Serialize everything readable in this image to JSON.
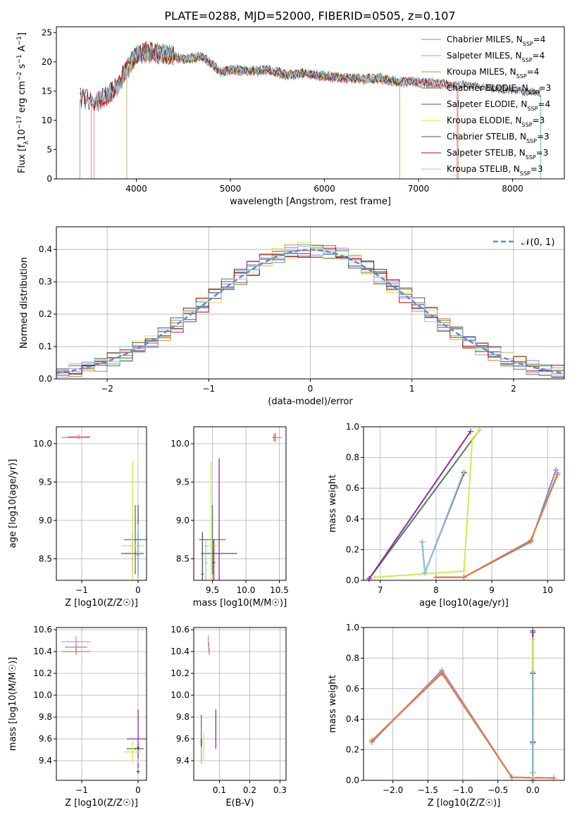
{
  "figure_title": "PLATE=0288, MJD=52000, FIBERID=0505, z=0.107",
  "colors": {
    "Chabrier MILES": "#6b8fd6",
    "Salpeter MILES": "#e886a8",
    "Kroupa MILES": "#e07b39",
    "Chabrier ELODIE": "#4f7f5a",
    "Salpeter ELODIE": "#8e2a9e",
    "Kroupa ELODIE": "#d6e84a",
    "Chabrier STELIB": "#555555",
    "Salpeter STELIB": "#a01010",
    "Kroupa STELIB": "#84d0e0",
    "normal_curve": "#5b8bd4"
  },
  "chart_data": [
    {
      "type": "line",
      "xlabel": "wavelength [Angstrom, rest frame]",
      "ylabel": "Flux [f_λ 10^-17 erg cm^-2 s^-1 A^-1]",
      "xlim": [
        3150,
        8550
      ],
      "ylim": [
        0,
        26
      ],
      "xticks": [
        "4000",
        "5000",
        "6000",
        "7000",
        "8000"
      ],
      "yticks": [
        "0",
        "5",
        "10",
        "15",
        "20",
        "25"
      ],
      "grid": false,
      "legend_position": "top-right",
      "legend": [
        {
          "label": "Chabrier MILES",
          "nssp": "4"
        },
        {
          "label": "Salpeter MILES",
          "nssp": "4"
        },
        {
          "label": "Kroupa MILES",
          "nssp": "4"
        },
        {
          "label": "Chabrier ELODIE",
          "nssp": "3"
        },
        {
          "label": "Salpeter ELODIE",
          "nssp": "4"
        },
        {
          "label": "Kroupa ELODIE",
          "nssp": "3"
        },
        {
          "label": "Chabrier STELIB",
          "nssp": "3"
        },
        {
          "label": "Salpeter STELIB",
          "nssp": "3"
        },
        {
          "label": "Kroupa STELIB",
          "nssp": "3"
        }
      ],
      "spectrum_anchors": {
        "x": [
          3400,
          3550,
          3700,
          3800,
          3900,
          4000,
          4100,
          4300,
          4500,
          4700,
          4800,
          4900,
          5000,
          5200,
          5400,
          5600,
          5800,
          6000,
          6200,
          6400,
          6600,
          6800,
          7000,
          7200,
          7400,
          7600,
          7800,
          8000,
          8200,
          8300
        ],
        "y": [
          13.6,
          12.8,
          14.0,
          15.8,
          18.5,
          21.0,
          21.5,
          21.0,
          20.2,
          20.6,
          19.5,
          18.0,
          18.4,
          18.2,
          18.4,
          17.5,
          17.8,
          17.3,
          17.0,
          16.8,
          16.9,
          16.3,
          16.3,
          16.0,
          15.7,
          15.5,
          15.1,
          14.8,
          14.5,
          14.3
        ]
      },
      "series_ranges": [
        {
          "name": "Chabrier MILES",
          "x": [
            3550,
            7410
          ]
        },
        {
          "name": "Salpeter MILES",
          "x": [
            3550,
            7410
          ]
        },
        {
          "name": "Kroupa MILES",
          "x": [
            3520,
            7420
          ]
        },
        {
          "name": "Chabrier ELODIE",
          "x": [
            3900,
            6800
          ]
        },
        {
          "name": "Salpeter ELODIE",
          "x": [
            3900,
            6800
          ]
        },
        {
          "name": "Kroupa ELODIE",
          "x": [
            3900,
            6800
          ]
        },
        {
          "name": "Chabrier STELIB",
          "x": [
            3400,
            8300
          ]
        },
        {
          "name": "Salpeter STELIB",
          "x": [
            3400,
            8300
          ]
        },
        {
          "name": "Kroupa STELIB",
          "x": [
            3400,
            8300
          ]
        }
      ]
    },
    {
      "type": "line",
      "xlabel": "(data-model)/error",
      "ylabel": "Normed distribution",
      "xlim": [
        -2.5,
        2.5
      ],
      "ylim": [
        0,
        0.47
      ],
      "xticks": [
        "−2",
        "−1",
        "0",
        "1",
        "2"
      ],
      "yticks": [
        "0.0",
        "0.1",
        "0.2",
        "0.3",
        "0.4"
      ],
      "grid": true,
      "legend_position": "top-right",
      "legend_label": "𝒩(0, 1)",
      "bin_width": 0.125,
      "curve": {
        "name": "𝒩(0, 1)",
        "mean": 0,
        "sigma": 1
      }
    },
    {
      "type": "scatter",
      "xlabel": "Z [log10(Z/Z☉)]",
      "ylabel": "age  [log10(age/yr)]",
      "xlim": [
        -1.45,
        0.15
      ],
      "ylim": [
        8.22,
        10.22
      ],
      "xticks": [
        {
          "v": -1,
          "t": "−1"
        },
        {
          "v": 0,
          "t": "0"
        }
      ],
      "yticks": [
        {
          "v": 8.5,
          "t": "8.5"
        },
        {
          "v": 9.0,
          "t": "9.0"
        },
        {
          "v": 9.5,
          "t": "9.5"
        },
        {
          "v": 10.0,
          "t": "10.0"
        }
      ],
      "grid": true,
      "points": [
        {
          "s": "Chabrier MILES",
          "x": -1.05,
          "y": 10.08,
          "ex": 0.2,
          "ey": 0.02
        },
        {
          "s": "Salpeter MILES",
          "x": -1.05,
          "y": 10.09,
          "ex": 0.2,
          "ey": 0.03
        },
        {
          "s": "Kroupa MILES",
          "x": -1.1,
          "y": 10.08,
          "ex": 0.25,
          "ey": 0.01
        },
        {
          "s": "Chabrier ELODIE",
          "x": -0.05,
          "y": 8.75,
          "ex": 0.2,
          "ey": 0.45
        },
        {
          "s": "Salpeter ELODIE",
          "x": -0.1,
          "y": 8.57,
          "ex": 0.2,
          "ey": 0.25
        },
        {
          "s": "Kroupa ELODIE",
          "x": -0.1,
          "y": 8.67,
          "ex": 0.2,
          "ey": 1.1
        },
        {
          "s": "Chabrier STELIB",
          "x": 0.0,
          "y": 8.75,
          "ex": 0.05,
          "ey": 0.45
        },
        {
          "s": "Salpeter STELIB",
          "x": 0.0,
          "y": 8.55,
          "ex": 0.02,
          "ey": 0.3
        },
        {
          "s": "Kroupa STELIB",
          "x": 0.0,
          "y": 8.6,
          "ex": 0.03,
          "ey": 0.35
        }
      ]
    },
    {
      "type": "scatter",
      "xlabel": "mass [log10(M/M☉)]",
      "ylabel": "",
      "xlim": [
        9.22,
        10.6
      ],
      "ylim": [
        8.22,
        10.22
      ],
      "xticks": [
        {
          "v": 9.5,
          "t": "9.5"
        },
        {
          "v": 10.0,
          "t": "10.0"
        },
        {
          "v": 10.5,
          "t": "10.5"
        }
      ],
      "yticks": [
        {
          "v": 8.5,
          "t": "8.5"
        },
        {
          "v": 9.0,
          "t": "9.0"
        },
        {
          "v": 9.5,
          "t": "9.5"
        },
        {
          "v": 10.0,
          "t": "10.0"
        }
      ],
      "grid": true,
      "points": [
        {
          "s": "Chabrier MILES",
          "x": 10.44,
          "y": 10.08,
          "ex": 0.04,
          "ey": 0.06
        },
        {
          "s": "Salpeter MILES",
          "x": 10.49,
          "y": 10.08,
          "ex": 0.05,
          "ey": 0.01
        },
        {
          "s": "Kroupa MILES",
          "x": 10.42,
          "y": 10.08,
          "ex": 0.03,
          "ey": 0.05
        },
        {
          "s": "Chabrier ELODIE",
          "x": 9.5,
          "y": 8.75,
          "ex": 0.2,
          "ey": 0.45
        },
        {
          "s": "Salpeter ELODIE",
          "x": 9.6,
          "y": 8.57,
          "ex": 0.27,
          "ey": 1.24
        },
        {
          "s": "Kroupa ELODIE",
          "x": 9.48,
          "y": 8.67,
          "ex": 0.1,
          "ey": 1.1
        },
        {
          "s": "Chabrier STELIB",
          "x": 9.35,
          "y": 8.3,
          "ex": 0.02,
          "ey": 0.55
        },
        {
          "s": "Salpeter STELIB",
          "x": 9.52,
          "y": 8.45,
          "ex": 0.02,
          "ey": 0.3
        },
        {
          "s": "Kroupa STELIB",
          "x": 9.4,
          "y": 8.45,
          "ex": 0.02,
          "ey": 0.3
        }
      ]
    },
    {
      "type": "line",
      "xlabel": "age  [log10(age/yr)]",
      "ylabel": "mass weight",
      "xlim": [
        6.7,
        10.3
      ],
      "ylim": [
        0,
        1.0
      ],
      "xticks": [
        {
          "v": 7,
          "t": "7"
        },
        {
          "v": 8,
          "t": "8"
        },
        {
          "v": 9,
          "t": "9"
        },
        {
          "v": 10,
          "t": "10"
        }
      ],
      "yticks": [
        {
          "v": 0,
          "t": "0.0"
        },
        {
          "v": 0.2,
          "t": "0.2"
        },
        {
          "v": 0.4,
          "t": "0.4"
        },
        {
          "v": 0.6,
          "t": "0.6"
        },
        {
          "v": 0.8,
          "t": "0.8"
        },
        {
          "v": 1.0,
          "t": "1.0"
        }
      ],
      "grid": true,
      "series": [
        {
          "name": "Chabrier MILES",
          "x": [
            8.0,
            8.5,
            9.7,
            10.15
          ],
          "y": [
            0.02,
            0.02,
            0.25,
            0.72
          ]
        },
        {
          "name": "Salpeter MILES",
          "x": [
            8.0,
            8.5,
            9.7,
            10.18
          ],
          "y": [
            0.02,
            0.02,
            0.26,
            0.7
          ]
        },
        {
          "name": "Kroupa MILES",
          "x": [
            8.0,
            8.5,
            9.7,
            10.18
          ],
          "y": [
            0.02,
            0.02,
            0.26,
            0.69
          ]
        },
        {
          "name": "Chabrier ELODIE",
          "x": [
            6.8,
            8.78
          ],
          "y": [
            0.01,
            0.98
          ]
        },
        {
          "name": "Salpeter ELODIE",
          "x": [
            6.8,
            8.62
          ],
          "y": [
            0.01,
            0.97
          ]
        },
        {
          "name": "Kroupa ELODIE",
          "x": [
            6.9,
            8.5,
            8.65,
            8.78
          ],
          "y": [
            0.02,
            0.06,
            0.92,
            0.98
          ]
        },
        {
          "name": "Chabrier STELIB",
          "x": [
            7.75,
            7.8,
            8.5
          ],
          "y": [
            0.25,
            0.05,
            0.7
          ]
        },
        {
          "name": "Salpeter STELIB",
          "x": [
            7.75,
            7.8,
            8.5
          ],
          "y": [
            0.25,
            0.05,
            0.7
          ]
        },
        {
          "name": "Kroupa STELIB",
          "x": [
            7.75,
            7.8,
            8.5
          ],
          "y": [
            0.25,
            0.05,
            0.71
          ]
        }
      ]
    },
    {
      "type": "scatter",
      "xlabel": "Z [log10(Z/Z☉)]",
      "ylabel": "mass [log10(M/M☉)]",
      "xlim": [
        -1.45,
        0.15
      ],
      "ylim": [
        9.22,
        10.62
      ],
      "xticks": [
        {
          "v": -1,
          "t": "−1"
        },
        {
          "v": 0,
          "t": "0"
        }
      ],
      "yticks": [
        {
          "v": 9.4,
          "t": "9.4"
        },
        {
          "v": 9.6,
          "t": "9.6"
        },
        {
          "v": 9.8,
          "t": "9.8"
        },
        {
          "v": 10.0,
          "t": "10.0"
        },
        {
          "v": 10.2,
          "t": "10.2"
        },
        {
          "v": 10.4,
          "t": "10.4"
        },
        {
          "v": 10.6,
          "t": "10.6"
        }
      ],
      "grid": true,
      "points": [
        {
          "s": "Chabrier MILES",
          "x": -1.1,
          "y": 10.44,
          "ex": 0.2,
          "ey": 0.04
        },
        {
          "s": "Salpeter MILES",
          "x": -1.1,
          "y": 10.49,
          "ex": 0.25,
          "ey": 0.05
        },
        {
          "s": "Kroupa MILES",
          "x": -1.1,
          "y": 10.4,
          "ex": 0.25,
          "ey": 0.03
        },
        {
          "s": "Chabrier ELODIE",
          "x": -0.05,
          "y": 9.51,
          "ex": 0.15,
          "ey": 0.01
        },
        {
          "s": "Salpeter ELODIE",
          "x": 0.0,
          "y": 9.6,
          "ex": 0.2,
          "ey": 0.27
        },
        {
          "s": "Kroupa ELODIE",
          "x": -0.1,
          "y": 9.48,
          "ex": 0.15,
          "ey": 0.1
        },
        {
          "s": "Chabrier STELIB",
          "x": 0.0,
          "y": 9.3,
          "ex": 0.03,
          "ey": 0.02
        },
        {
          "s": "Salpeter STELIB",
          "x": 0.0,
          "y": 9.52,
          "ex": 0.02,
          "ey": 0.02
        },
        {
          "s": "Kroupa STELIB",
          "x": 0.0,
          "y": 9.4,
          "ex": 0.02,
          "ey": 0.02
        }
      ]
    },
    {
      "type": "scatter",
      "xlabel": "E(B-V)",
      "ylabel": "",
      "xlim": [
        0.015,
        0.32
      ],
      "ylim": [
        9.22,
        10.62
      ],
      "xticks": [
        {
          "v": 0.1,
          "t": "0.1"
        },
        {
          "v": 0.2,
          "t": "0.2"
        },
        {
          "v": 0.3,
          "t": "0.3"
        }
      ],
      "yticks": [
        {
          "v": 9.4,
          "t": "9.4"
        },
        {
          "v": 9.6,
          "t": "9.6"
        },
        {
          "v": 9.8,
          "t": "9.8"
        },
        {
          "v": 10.0,
          "t": "10.0"
        },
        {
          "v": 10.2,
          "t": "10.2"
        },
        {
          "v": 10.4,
          "t": "10.4"
        },
        {
          "v": 10.6,
          "t": "10.6"
        }
      ],
      "grid": true,
      "points": [
        {
          "s": "Chabrier MILES",
          "x": 0.065,
          "y": 10.44,
          "ex": 0.001,
          "ey": 0.04
        },
        {
          "s": "Salpeter MILES",
          "x": 0.063,
          "y": 10.5,
          "ex": 0.001,
          "ey": 0.05
        },
        {
          "s": "Kroupa MILES",
          "x": 0.066,
          "y": 10.4,
          "ex": 0.001,
          "ey": 0.03
        },
        {
          "s": "Chabrier ELODIE",
          "x": 0.04,
          "y": 9.65,
          "ex": 0.001,
          "ey": 0.17
        },
        {
          "s": "Salpeter ELODIE",
          "x": 0.088,
          "y": 9.69,
          "ex": 0.001,
          "ey": 0.18
        },
        {
          "s": "Kroupa ELODIE",
          "x": 0.048,
          "y": 9.53,
          "ex": 0.001,
          "ey": 0.13
        },
        {
          "s": "Chabrier STELIB",
          "x": 0.04,
          "y": 9.5,
          "ex": 0.001,
          "ey": 0.1
        },
        {
          "s": "Salpeter STELIB",
          "x": 0.04,
          "y": 9.52,
          "ex": 0.001,
          "ey": 0.08
        },
        {
          "s": "Kroupa STELIB",
          "x": 0.04,
          "y": 9.45,
          "ex": 0.001,
          "ey": 0.08
        }
      ]
    },
    {
      "type": "line",
      "xlabel": "Z [log10(Z/Z☉)]",
      "ylabel": "mass weight",
      "xlim": [
        -2.42,
        0.45
      ],
      "ylim": [
        0,
        1.0
      ],
      "xticks": [
        {
          "v": -2.0,
          "t": "−2.0"
        },
        {
          "v": -1.5,
          "t": "−1.5"
        },
        {
          "v": -1.0,
          "t": "−1.0"
        },
        {
          "v": -0.5,
          "t": "−0.5"
        },
        {
          "v": 0.0,
          "t": "0.0"
        }
      ],
      "yticks": [
        {
          "v": 0,
          "t": "0.0"
        },
        {
          "v": 0.2,
          "t": "0.2"
        },
        {
          "v": 0.4,
          "t": "0.4"
        },
        {
          "v": 0.6,
          "t": "0.6"
        },
        {
          "v": 0.8,
          "t": "0.8"
        },
        {
          "v": 1.0,
          "t": "1.0"
        }
      ],
      "grid": true,
      "series": [
        {
          "name": "Chabrier MILES",
          "x": [
            -2.3,
            -1.3,
            -0.3,
            0.3
          ],
          "y": [
            0.25,
            0.72,
            0.02,
            0.015
          ]
        },
        {
          "name": "Salpeter MILES",
          "x": [
            -2.3,
            -1.3,
            -0.3,
            0.3
          ],
          "y": [
            0.26,
            0.71,
            0.02,
            0.015
          ]
        },
        {
          "name": "Kroupa MILES",
          "x": [
            -2.3,
            -1.3,
            -0.3,
            0.3
          ],
          "y": [
            0.26,
            0.7,
            0.02,
            0.015
          ]
        },
        {
          "name": "Chabrier ELODIE",
          "x": [
            0.0,
            0.0,
            0.0
          ],
          "y": [
            0.05,
            0.98,
            0.0
          ]
        },
        {
          "name": "Salpeter ELODIE",
          "x": [
            0.0,
            0.0,
            0.0
          ],
          "y": [
            0.0,
            0.97,
            0.02
          ]
        },
        {
          "name": "Kroupa ELODIE",
          "x": [
            0.0,
            0.0,
            0.0
          ],
          "y": [
            0.05,
            0.92,
            0.02
          ]
        },
        {
          "name": "Chabrier STELIB",
          "x": [
            0.0,
            0.0,
            0.0
          ],
          "y": [
            0.25,
            0.05,
            0.7
          ]
        },
        {
          "name": "Salpeter STELIB",
          "x": [
            0.0,
            0.0,
            0.0
          ],
          "y": [
            0.25,
            0.05,
            0.7
          ]
        },
        {
          "name": "Kroupa STELIB",
          "x": [
            0.0,
            0.0,
            0.0
          ],
          "y": [
            0.24,
            0.05,
            0.71
          ]
        }
      ]
    }
  ]
}
